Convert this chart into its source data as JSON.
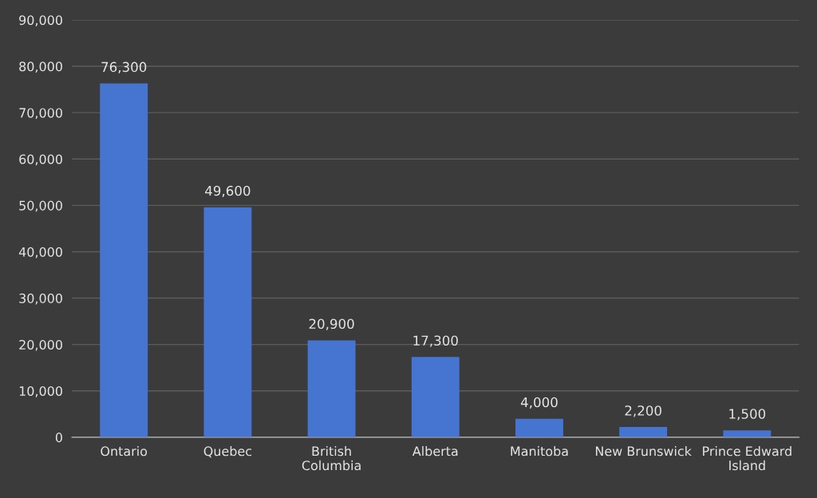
{
  "chart_data": {
    "type": "bar",
    "categories": [
      "Ontario",
      "Quebec",
      "British\nColumbia",
      "Alberta",
      "Manitoba",
      "New Brunswick",
      "Prince Edward\nIsland"
    ],
    "values": [
      76300,
      49600,
      20900,
      17300,
      4000,
      2200,
      1500
    ],
    "color": "#4675d1",
    "ylim": [
      0,
      90000
    ],
    "yticks": [
      {
        "value": 0,
        "label": "0"
      },
      {
        "value": 10000,
        "label": "10,000"
      },
      {
        "value": 20000,
        "label": "20,000"
      },
      {
        "value": 30000,
        "label": "30,000"
      },
      {
        "value": 40000,
        "label": "40,000"
      },
      {
        "value": 50000,
        "label": "50,000"
      },
      {
        "value": 60000,
        "label": "60,000"
      },
      {
        "value": 70000,
        "label": "70,000"
      },
      {
        "value": 80000,
        "label": "80,000"
      },
      {
        "value": 90000,
        "label": "90,000"
      }
    ],
    "value_labels": [
      "76,300",
      "49,600",
      "20,900",
      "17,300",
      "4,000",
      "2,200",
      "1,500"
    ],
    "grid": "y"
  }
}
